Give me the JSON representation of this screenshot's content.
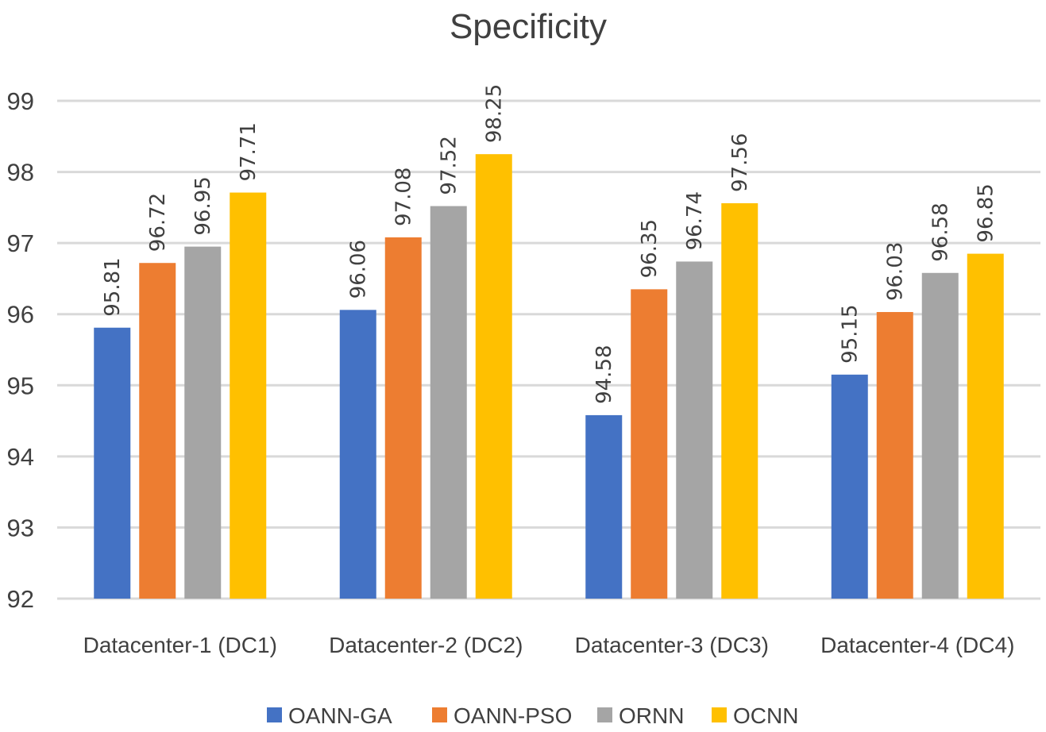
{
  "chart_data": {
    "type": "bar",
    "title": "Specificity",
    "xlabel": "",
    "ylabel": "",
    "ylim": [
      92,
      99
    ],
    "yticks": [
      92,
      93,
      94,
      95,
      96,
      97,
      98,
      99
    ],
    "grid": true,
    "legend_position": "bottom",
    "categories": [
      "Datacenter-1 (DC1)",
      "Datacenter-2 (DC2)",
      "Datacenter-3 (DC3)",
      "Datacenter-4 (DC4)"
    ],
    "series": [
      {
        "name": "OANN-GA",
        "color": "#4472c4",
        "values": [
          95.81,
          96.06,
          94.58,
          95.15
        ]
      },
      {
        "name": "OANN-PSO",
        "color": "#ed7d31",
        "values": [
          96.72,
          97.08,
          96.35,
          96.03
        ]
      },
      {
        "name": "ORNN",
        "color": "#a5a5a5",
        "values": [
          96.95,
          97.52,
          96.74,
          96.58
        ]
      },
      {
        "name": "OCNN",
        "color": "#ffc000",
        "values": [
          97.71,
          98.25,
          97.56,
          96.85
        ]
      }
    ]
  }
}
